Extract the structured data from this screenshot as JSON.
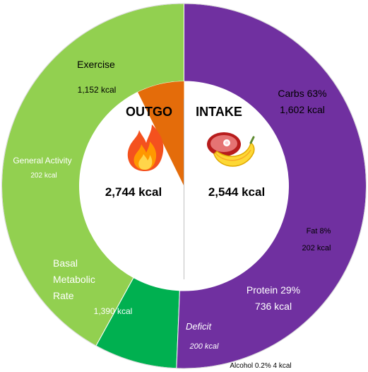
{
  "chart_data": {
    "type": "pie",
    "donut": true,
    "total_kcal": 2744,
    "outgo": {
      "title": "OUTGO",
      "total": "2,744 kcal",
      "icon": "fire-icon",
      "segments": [
        {
          "name": "Exercise",
          "value": 1152,
          "label": [
            "Exercise"
          ],
          "value_label": "1,152 kcal",
          "color": "#92d050"
        },
        {
          "name": "General Activity",
          "value": 202,
          "label": [
            "General Activity"
          ],
          "value_label": "202 kcal",
          "color": "#00b050"
        },
        {
          "name": "Basal Metabolic Rate",
          "value": 1390,
          "label": [
            "Basal",
            "Metabolic",
            "Rate"
          ],
          "value_label": "1,390 kcal",
          "color": "#7030a0"
        }
      ]
    },
    "intake": {
      "title": "INTAKE",
      "total": "2,544 kcal",
      "icon": "meat-and-banana-icon",
      "segments": [
        {
          "name": "Carbs",
          "value": 1602,
          "label": [
            "Carbs 63%",
            "1,602 kcal"
          ],
          "color": "#ffc000"
        },
        {
          "name": "Fat",
          "value": 202,
          "label": [
            "Fat 8%",
            "202 kcal"
          ],
          "color": "#e7e6e6"
        },
        {
          "name": "Protein",
          "value": 736,
          "label": [
            "Protein 29%",
            "736 kcal"
          ],
          "color": "#ff0000"
        },
        {
          "name": "Alcohol",
          "value": 4,
          "label": [
            "Alcohol 0.2% 4 kcal"
          ],
          "color": "#c00000"
        }
      ]
    },
    "deficit": {
      "name": "Deficit",
      "value": 200,
      "label": "Deficit",
      "value_label": "200 kcal",
      "color": "#e46c0a"
    }
  }
}
